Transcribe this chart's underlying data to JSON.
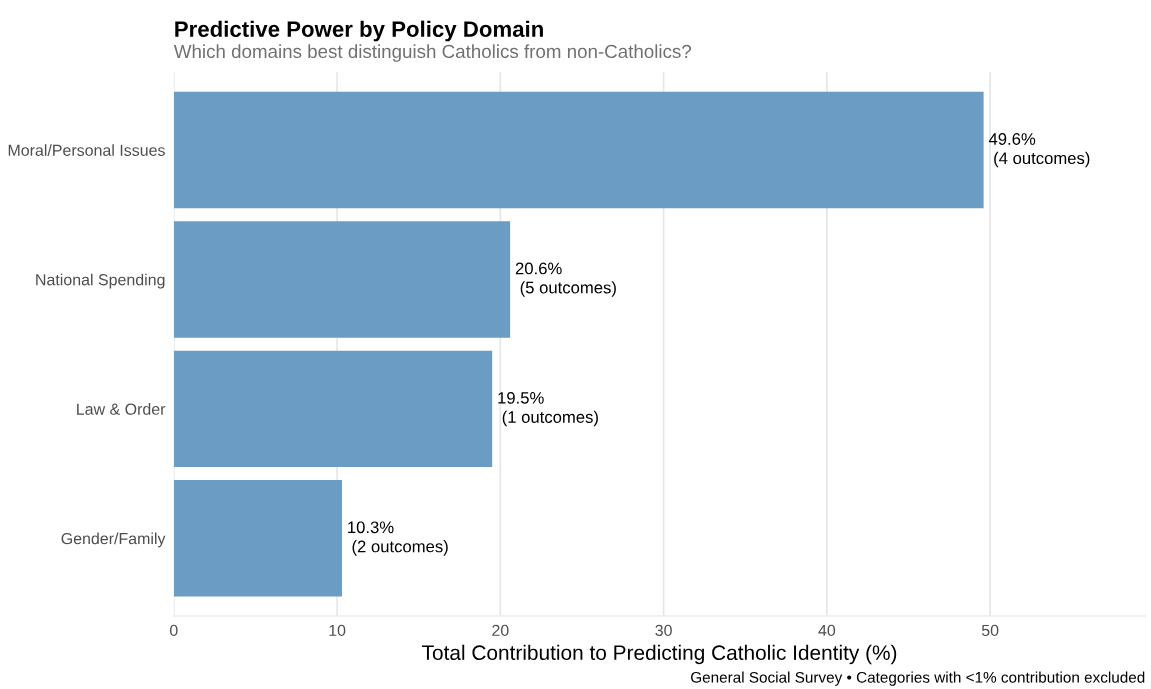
{
  "chart_data": {
    "type": "bar",
    "orientation": "horizontal",
    "title": "Predictive Power by Policy Domain",
    "subtitle": "Which domains best distinguish Catholics from non-Catholics?",
    "xlabel": "Total Contribution to Predicting Catholic Identity (%)",
    "categories": [
      "Moral/Personal Issues",
      "National Spending",
      "Law & Order",
      "Gender/Family"
    ],
    "values": [
      49.6,
      20.6,
      19.5,
      10.3
    ],
    "value_labels": [
      "49.6%\n (4 outcomes)",
      "20.6%\n (5 outcomes)",
      "19.5%\n (1 outcomes)",
      "10.3%\n (2 outcomes)"
    ],
    "color": "#6a9cc4",
    "xlim": [
      0,
      59.5
    ],
    "xticks": [
      0,
      10,
      20,
      30,
      40,
      50
    ],
    "grid": "x",
    "legend": false,
    "annotations": [
      "General Social Survey • Categories with <1% contribution excluded"
    ]
  }
}
